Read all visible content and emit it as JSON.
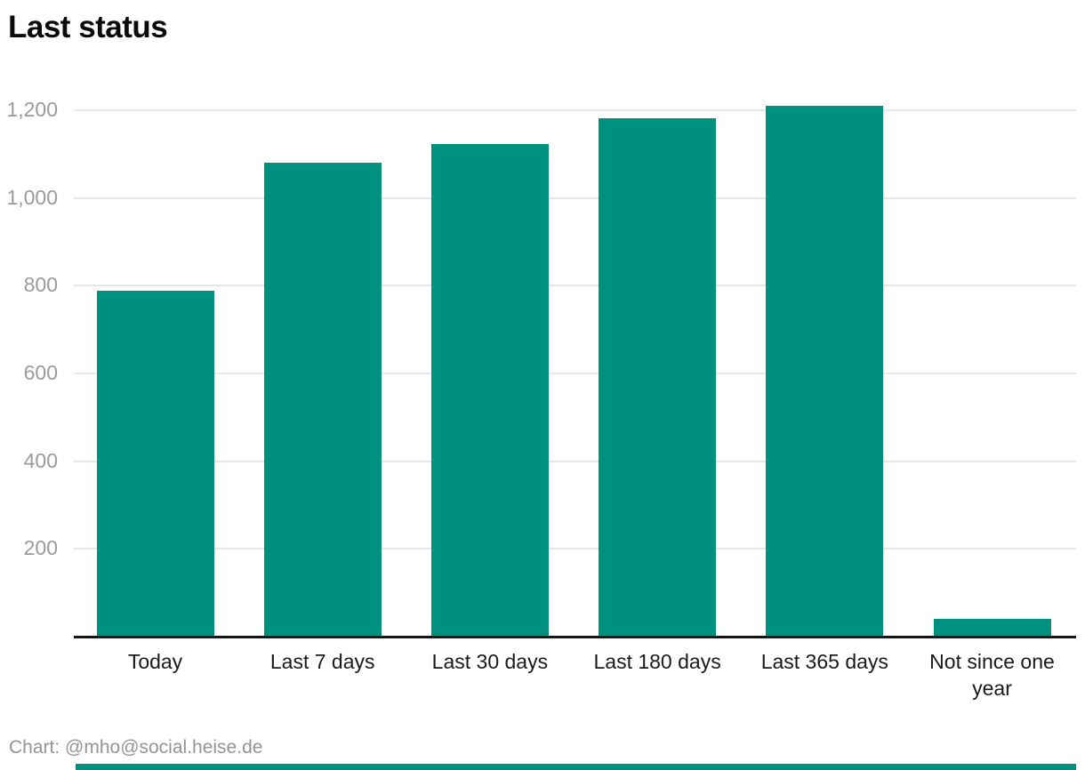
{
  "title": "Last status",
  "footer": "Chart: @mho@social.heise.de",
  "colors": {
    "bar": "#00917E",
    "grid": "#E7E7E7",
    "axis_line": "#161616",
    "y_tick_label": "#9B9B9B",
    "x_tick_label": "#1A1A1A",
    "footer_text": "#949494",
    "bottom_strip": "#00917E"
  },
  "chart_data": {
    "type": "bar",
    "title": "Last status",
    "categories": [
      "Today",
      "Last 7 days",
      "Last 30 days",
      "Last 180 days",
      "Last 365 days",
      "Not since one year"
    ],
    "values": [
      789,
      1081,
      1122,
      1181,
      1210,
      40
    ],
    "xlabel": "",
    "ylabel": "",
    "ylim": [
      0,
      1240
    ],
    "yticks": [
      200,
      400,
      600,
      800,
      1000,
      1200
    ],
    "ytick_labels": [
      "200",
      "400",
      "600",
      "800",
      "1,000",
      "1,200"
    ],
    "grid": true,
    "legend": false,
    "bar_color": "#00917E"
  }
}
